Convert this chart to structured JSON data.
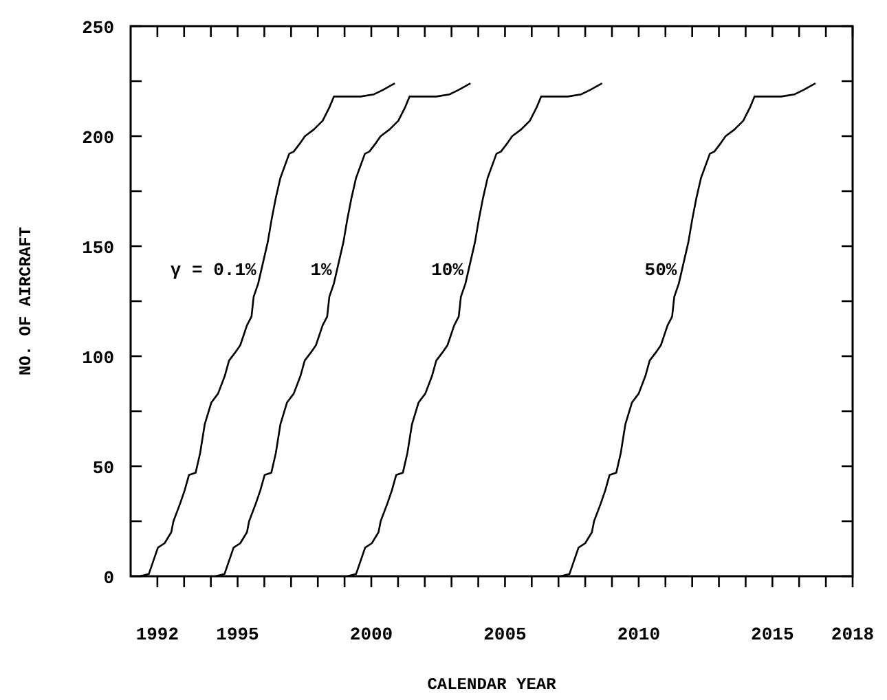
{
  "chart_data": {
    "type": "line",
    "xlabel": "CALENDAR YEAR",
    "ylabel": "NO. OF AIRCRAFT",
    "xlim": [
      1991,
      2018
    ],
    "ylim": [
      0,
      250
    ],
    "xticks": [
      {
        "value": 1992,
        "label": "1992"
      },
      {
        "value": 1993,
        "label": null
      },
      {
        "value": 1994,
        "label": null
      },
      {
        "value": 1995,
        "label": "1995"
      },
      {
        "value": 1996,
        "label": null
      },
      {
        "value": 1997,
        "label": null
      },
      {
        "value": 1998,
        "label": null
      },
      {
        "value": 1999,
        "label": null
      },
      {
        "value": 2000,
        "label": "2000"
      },
      {
        "value": 2001,
        "label": null
      },
      {
        "value": 2002,
        "label": null
      },
      {
        "value": 2003,
        "label": null
      },
      {
        "value": 2004,
        "label": null
      },
      {
        "value": 2005,
        "label": "2005"
      },
      {
        "value": 2006,
        "label": null
      },
      {
        "value": 2007,
        "label": null
      },
      {
        "value": 2008,
        "label": null
      },
      {
        "value": 2009,
        "label": null
      },
      {
        "value": 2010,
        "label": "2010"
      },
      {
        "value": 2011,
        "label": null
      },
      {
        "value": 2012,
        "label": null
      },
      {
        "value": 2013,
        "label": null
      },
      {
        "value": 2014,
        "label": null
      },
      {
        "value": 2015,
        "label": "2015"
      },
      {
        "value": 2016,
        "label": null
      },
      {
        "value": 2017,
        "label": null
      },
      {
        "value": 2018,
        "label": "2018"
      }
    ],
    "yticks": [
      0,
      {
        "value": 25,
        "label": null
      },
      50,
      {
        "value": 75,
        "label": null
      },
      100,
      {
        "value": 125,
        "label": null
      },
      150,
      {
        "value": 175,
        "label": null
      },
      200,
      {
        "value": 225,
        "label": null
      },
      250
    ],
    "grid": false,
    "marker": "none",
    "line_style": "solid",
    "series": [
      {
        "name": "γ = 0.1%",
        "color": "#000000",
        "x": [
          1991.35,
          1991.68,
          1992.02,
          1992.27,
          1992.52,
          1992.6,
          1992.85,
          1993.02,
          1993.18,
          1993.43,
          1993.6,
          1993.77,
          1994.02,
          1994.27,
          1994.52,
          1994.68,
          1994.93,
          1995.1,
          1995.35,
          1995.52,
          1995.6,
          1995.77,
          1996.13,
          1996.27,
          1996.43,
          1996.6,
          1996.93,
          1997.1,
          1997.35,
          1997.52,
          1997.85,
          1998.18,
          1998.43,
          1998.6,
          1999.6,
          2000.1,
          2000.43,
          2000.88
        ],
        "values": [
          0,
          1,
          13,
          15,
          20,
          25,
          33,
          39,
          46,
          47,
          56,
          69,
          79,
          83,
          91,
          98,
          102,
          105,
          114,
          118,
          127,
          133,
          152,
          162,
          172,
          181,
          192,
          193,
          197,
          200,
          203,
          207,
          213,
          218,
          218,
          219,
          221,
          224
        ]
      },
      {
        "name": "1%",
        "color": "#000000",
        "x": [
          1994.18,
          1994.51,
          1994.85,
          1995.1,
          1995.35,
          1995.43,
          1995.68,
          1995.85,
          1996.01,
          1996.26,
          1996.43,
          1996.6,
          1996.85,
          1997.1,
          1997.35,
          1997.51,
          1997.76,
          1997.93,
          1998.18,
          1998.35,
          1998.43,
          1998.6,
          1998.96,
          1999.1,
          1999.26,
          1999.43,
          1999.76,
          1999.93,
          2000.18,
          2000.35,
          2000.68,
          2001.01,
          2001.26,
          2001.43,
          2002.43,
          2002.93,
          2003.26,
          2003.71
        ],
        "values": [
          0,
          1,
          13,
          15,
          20,
          25,
          33,
          39,
          46,
          47,
          56,
          69,
          79,
          83,
          91,
          98,
          102,
          105,
          114,
          118,
          127,
          133,
          152,
          162,
          172,
          181,
          192,
          193,
          197,
          200,
          203,
          207,
          213,
          218,
          218,
          219,
          221,
          224
        ]
      },
      {
        "name": "10%",
        "color": "#000000",
        "x": [
          1999.1,
          1999.43,
          1999.77,
          2000.02,
          2000.27,
          2000.35,
          2000.6,
          2000.77,
          2000.93,
          2001.18,
          2001.35,
          2001.52,
          2001.77,
          2002.02,
          2002.27,
          2002.43,
          2002.68,
          2002.85,
          2003.1,
          2003.27,
          2003.35,
          2003.52,
          2003.88,
          2004.02,
          2004.18,
          2004.35,
          2004.68,
          2004.85,
          2005.1,
          2005.27,
          2005.6,
          2005.93,
          2006.18,
          2006.35,
          2007.35,
          2007.85,
          2008.18,
          2008.63
        ],
        "values": [
          0,
          1,
          13,
          15,
          20,
          25,
          33,
          39,
          46,
          47,
          56,
          69,
          79,
          83,
          91,
          98,
          102,
          105,
          114,
          118,
          127,
          133,
          152,
          162,
          172,
          181,
          192,
          193,
          197,
          200,
          203,
          207,
          213,
          218,
          218,
          219,
          221,
          224
        ]
      },
      {
        "name": "50%",
        "color": "#000000",
        "x": [
          2007.08,
          2007.41,
          2007.75,
          2008.0,
          2008.25,
          2008.33,
          2008.58,
          2008.75,
          2008.91,
          2009.16,
          2009.33,
          2009.5,
          2009.75,
          2010.0,
          2010.25,
          2010.41,
          2010.66,
          2010.83,
          2011.08,
          2011.25,
          2011.33,
          2011.5,
          2011.86,
          2012.0,
          2012.16,
          2012.33,
          2012.66,
          2012.83,
          2013.08,
          2013.25,
          2013.58,
          2013.91,
          2014.16,
          2014.33,
          2015.33,
          2015.83,
          2016.16,
          2016.61
        ],
        "values": [
          0,
          1,
          13,
          15,
          20,
          25,
          33,
          39,
          46,
          47,
          56,
          69,
          79,
          83,
          91,
          98,
          102,
          105,
          114,
          118,
          127,
          133,
          152,
          162,
          172,
          181,
          192,
          193,
          197,
          200,
          203,
          207,
          213,
          218,
          218,
          219,
          221,
          224
        ]
      }
    ]
  }
}
